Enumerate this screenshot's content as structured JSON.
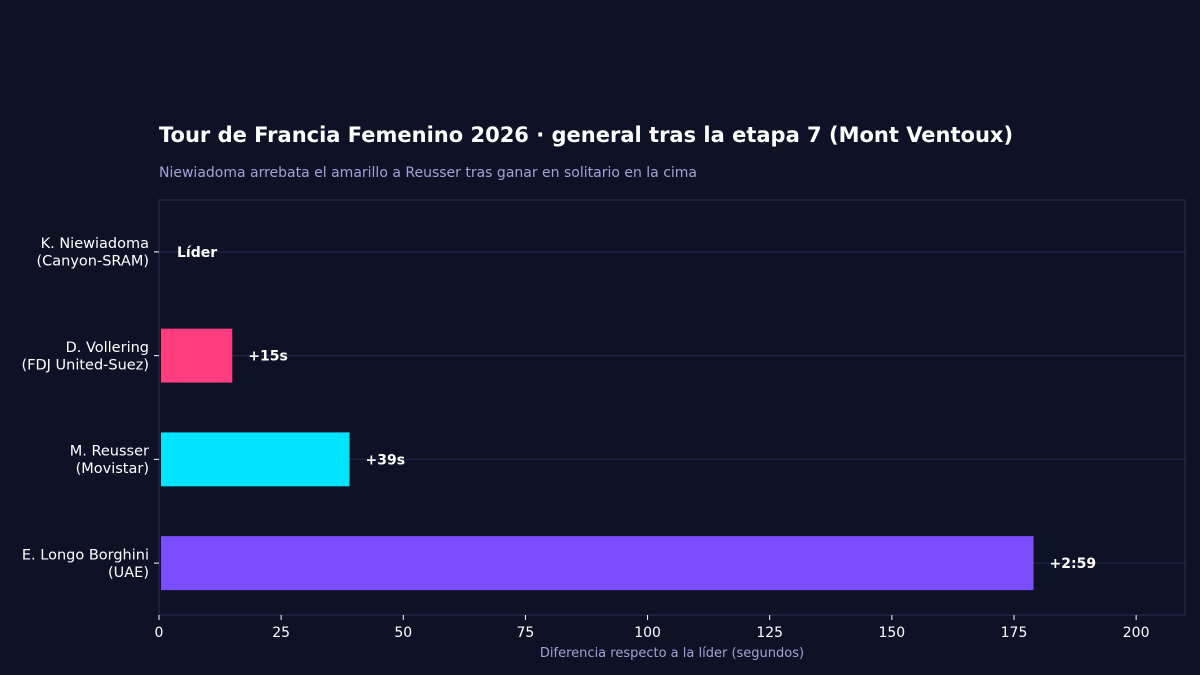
{
  "chart_data": {
    "type": "bar",
    "orientation": "horizontal",
    "title": "Tour de Francia Femenino 2026 · general tras la etapa 7 (Mont Ventoux)",
    "subtitle": "Niewiadoma arrebata el amarillo a Reusser tras ganar en solitario en la cima",
    "xlabel": "Diferencia respecto a la líder (segundos)",
    "ylabel": "",
    "xlim": [
      0,
      210
    ],
    "xticks": [
      0,
      25,
      50,
      75,
      100,
      125,
      150,
      175,
      200
    ],
    "grid": true,
    "categories": [
      [
        "K. Niewiadoma",
        "(Canyon-SRAM)"
      ],
      [
        "D. Vollering",
        "(FDJ United-Suez)"
      ],
      [
        "M. Reusser",
        "(Movistar)"
      ],
      [
        "E. Longo Borghini",
        "(UAE)"
      ]
    ],
    "values": [
      0,
      15,
      39,
      179
    ],
    "labels": [
      "Líder",
      "+15s",
      "+39s",
      "+2:59"
    ],
    "colors": [
      "#ffd400",
      "#ff3d7f",
      "#00e5ff",
      "#7c4dff"
    ]
  },
  "theme": {
    "background": "#0f1226",
    "frame": "#2a2f55",
    "grid": "#232850",
    "text": "#ffffff",
    "muted": "#9ea3d6"
  }
}
